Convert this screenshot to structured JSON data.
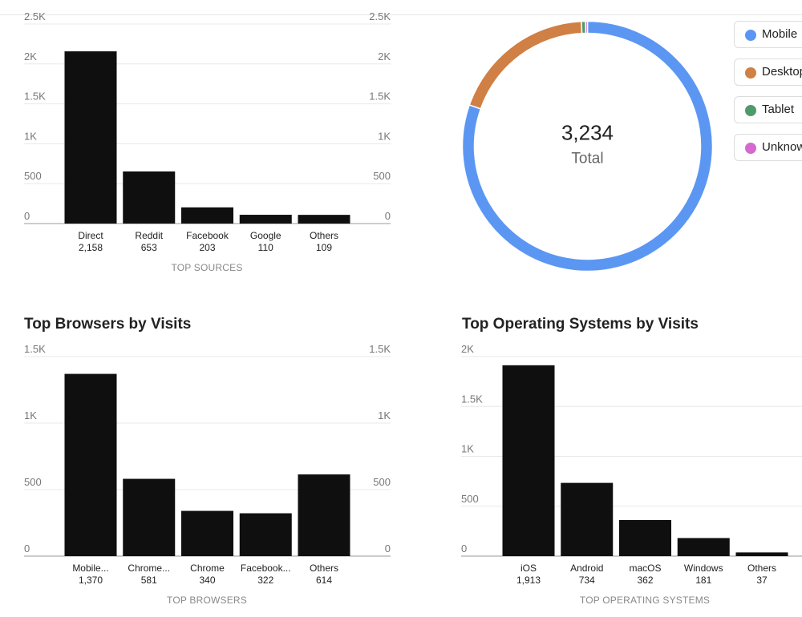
{
  "sections": {
    "browsers_title": "Top Browsers by Visits",
    "os_title": "Top Operating Systems by Visits"
  },
  "device": {
    "total_value": "3,234",
    "total_label": "Total",
    "legend": [
      {
        "label": "Mobile",
        "color": "#5b97f2"
      },
      {
        "label": "Desktop",
        "color": "#d07f45"
      },
      {
        "label": "Tablet",
        "color": "#4f9a6b"
      },
      {
        "label": "Unknown",
        "color": "#d46ad0"
      }
    ]
  },
  "chart_data": [
    {
      "type": "bar",
      "title": "",
      "caption": "TOP SOURCES",
      "categories": [
        "Direct",
        "Reddit",
        "Facebook",
        "Google",
        "Others"
      ],
      "values": [
        2158,
        653,
        203,
        110,
        109
      ],
      "value_labels": [
        "2,158",
        "653",
        "203",
        "110",
        "109"
      ],
      "yticks": [
        0,
        500,
        1000,
        1500,
        2000,
        2500
      ],
      "ytick_labels": [
        "0",
        "500",
        "1K",
        "1.5K",
        "2K",
        "2.5K"
      ],
      "ylim": [
        0,
        2500
      ],
      "grid": true
    },
    {
      "type": "pie",
      "title": "",
      "labels": [
        "Mobile",
        "Desktop",
        "Tablet",
        "Unknown"
      ],
      "values": [
        2599,
        610,
        17,
        8
      ],
      "center_text": "3,234",
      "center_label": "Total"
    },
    {
      "type": "bar",
      "title": "Top Browsers by Visits",
      "caption": "TOP BROWSERS",
      "categories": [
        "Mobile...",
        "Chrome...",
        "Chrome",
        "Facebook...",
        "Others"
      ],
      "values": [
        1370,
        581,
        340,
        322,
        614
      ],
      "value_labels": [
        "1,370",
        "581",
        "340",
        "322",
        "614"
      ],
      "yticks": [
        0,
        500,
        1000,
        1500
      ],
      "ytick_labels": [
        "0",
        "500",
        "1K",
        "1.5K"
      ],
      "ylim": [
        0,
        1500
      ],
      "grid": true
    },
    {
      "type": "bar",
      "title": "Top Operating Systems by Visits",
      "caption": "TOP OPERATING SYSTEMS",
      "categories": [
        "iOS",
        "Android",
        "macOS",
        "Windows",
        "Others"
      ],
      "values": [
        1913,
        734,
        362,
        181,
        37
      ],
      "value_labels": [
        "1,913",
        "734",
        "362",
        "181",
        "37"
      ],
      "yticks": [
        0,
        500,
        1000,
        1500,
        2000
      ],
      "ytick_labels": [
        "0",
        "500",
        "1K",
        "1.5K",
        "2K"
      ],
      "ylim": [
        0,
        2000
      ],
      "grid": true
    }
  ]
}
